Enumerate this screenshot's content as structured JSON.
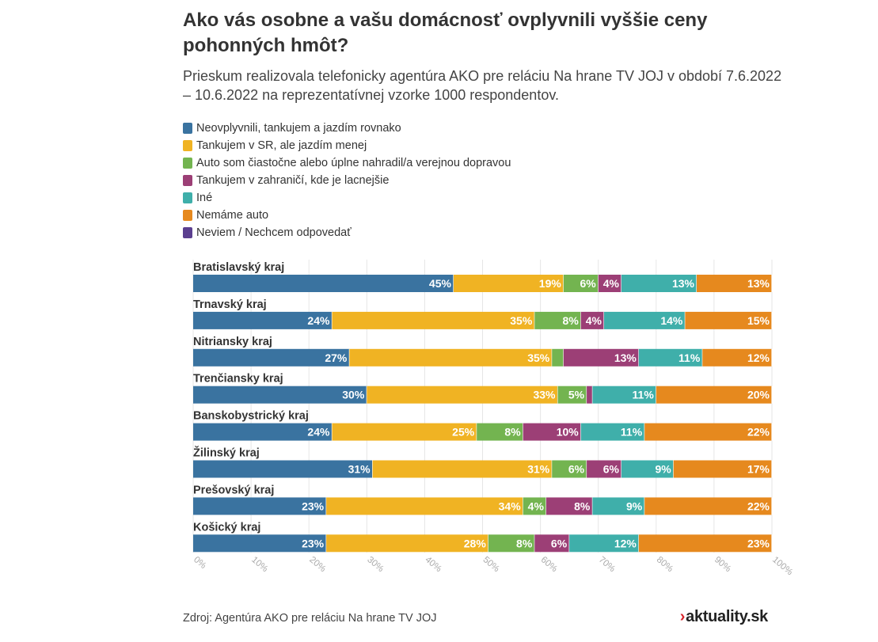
{
  "chart_data": {
    "type": "bar",
    "orientation": "horizontal",
    "stacked": true,
    "title": "Ako vás osobne a vašu domácnosť ovplyvnili vyššie ceny pohonných hmôt?",
    "subtitle": "Prieskum realizovala telefonicky agentúra AKO pre reláciu Na hrane TV JOJ v období 7.6.2022 – 10.6.2022 na reprezentatívnej vzorke 1000 respondentov.",
    "categories": [
      "Bratislavský kraj",
      "Trnavský kraj",
      "Nitriansky kraj",
      "Trenčiansky kraj",
      "Banskobystrický kraj",
      "Žilinský kraj",
      "Prešovský kraj",
      "Košický kraj"
    ],
    "series": [
      {
        "name": "Neovplyvnili, tankujem a jazdím rovnako",
        "color": "#3a73a0",
        "values": [
          45,
          24,
          27,
          30,
          24,
          31,
          23,
          23
        ]
      },
      {
        "name": "Tankujem v SR, ale jazdím menej",
        "color": "#f0b323",
        "values": [
          19,
          35,
          35,
          33,
          25,
          31,
          34,
          28
        ]
      },
      {
        "name": "Auto som čiastočne alebo úplne nahradil/a verejnou dopravou",
        "color": "#73b450",
        "values": [
          6,
          8,
          2,
          5,
          8,
          6,
          4,
          8
        ]
      },
      {
        "name": "Tankujem v zahraničí, kde je lacnejšie",
        "color": "#9c3f76",
        "values": [
          4,
          4,
          13,
          1,
          10,
          6,
          8,
          6
        ]
      },
      {
        "name": "Iné",
        "color": "#3fafaa",
        "values": [
          13,
          14,
          11,
          11,
          11,
          9,
          9,
          12
        ]
      },
      {
        "name": "Nemáme auto",
        "color": "#e6891e",
        "values": [
          13,
          15,
          12,
          20,
          22,
          17,
          22,
          23
        ]
      },
      {
        "name": "Neviem / Nechcem odpovedať",
        "color": "#5b3f8f",
        "values": [
          0,
          0,
          0,
          0,
          0,
          0,
          0,
          0
        ]
      }
    ],
    "value_labels": [
      [
        "45%",
        "19%",
        "6%",
        "4%",
        "13%",
        "13%",
        ""
      ],
      [
        "24%",
        "35%",
        "8%",
        "4%",
        "14%",
        "15%",
        ""
      ],
      [
        "27%",
        "35%",
        "",
        "13%",
        "11%",
        "12%",
        ""
      ],
      [
        "30%",
        "33%",
        "5%",
        "",
        "11%",
        "20%",
        ""
      ],
      [
        "24%",
        "25%",
        "8%",
        "10%",
        "11%",
        "22%",
        ""
      ],
      [
        "31%",
        "31%",
        "6%",
        "6%",
        "9%",
        "17%",
        ""
      ],
      [
        "23%",
        "34%",
        "4%",
        "8%",
        "9%",
        "22%",
        ""
      ],
      [
        "23%",
        "28%",
        "8%",
        "6%",
        "12%",
        "23%",
        ""
      ]
    ],
    "x_ticks": [
      "0%",
      "10%",
      "20%",
      "30%",
      "40%",
      "50%",
      "60%",
      "70%",
      "80%",
      "90%",
      "100%"
    ],
    "xlim": [
      0,
      100
    ],
    "grid": true,
    "legend_position": "top-left"
  },
  "footer": {
    "source": "Zdroj: Agentúra AKO pre reláciu Na hrane TV JOJ",
    "logo": "aktuality.sk",
    "logo_chevron": "›"
  }
}
